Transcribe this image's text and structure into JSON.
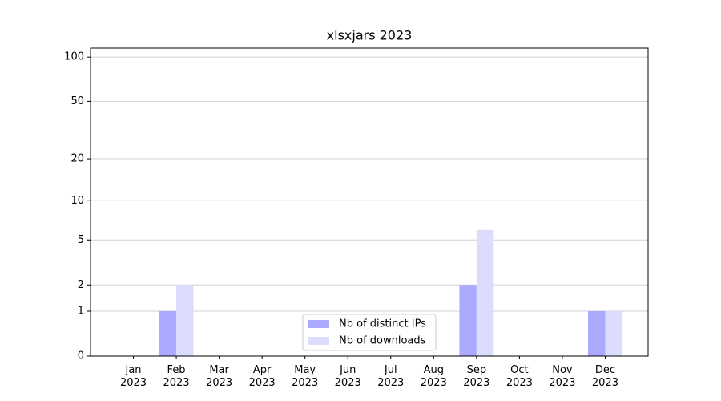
{
  "chart_data": {
    "type": "bar",
    "title": "xlsxjars 2023",
    "categories": [
      "Jan\n2023",
      "Feb\n2023",
      "Mar\n2023",
      "Apr\n2023",
      "May\n2023",
      "Jun\n2023",
      "Jul\n2023",
      "Aug\n2023",
      "Sep\n2023",
      "Oct\n2023",
      "Nov\n2023",
      "Dec\n2023"
    ],
    "series": [
      {
        "name": "Nb of distinct IPs",
        "color": "#aaaaff",
        "values": [
          0,
          1,
          0,
          0,
          0,
          0,
          0,
          0,
          2,
          0,
          0,
          1
        ]
      },
      {
        "name": "Nb of downloads",
        "color": "#dcdcff",
        "values": [
          0,
          2,
          0,
          0,
          0,
          0,
          0,
          0,
          6,
          0,
          0,
          1
        ]
      }
    ],
    "y_scale": "log1p",
    "ylim": [
      0,
      115
    ],
    "yticks": [
      0,
      1,
      2,
      5,
      10,
      20,
      50,
      100
    ],
    "grid": true,
    "legend": "lower center"
  }
}
